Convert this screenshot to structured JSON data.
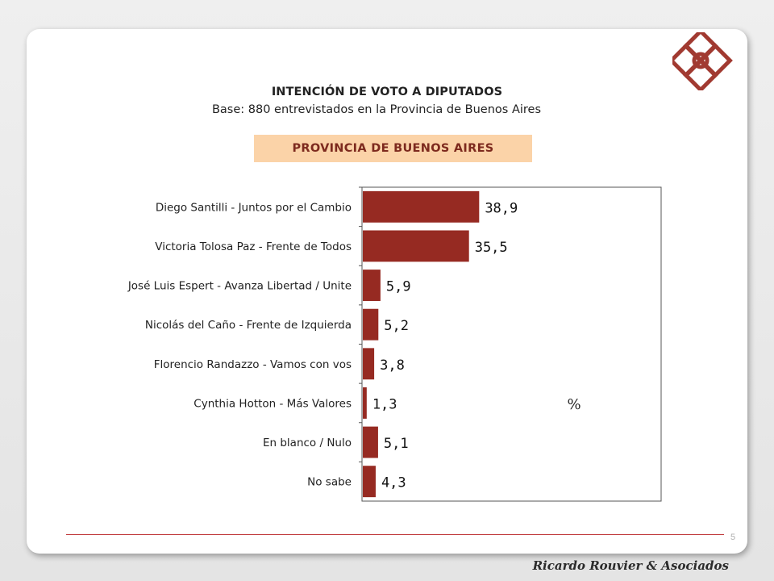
{
  "title": "INTENCIÓN DE VOTO A DIPUTADOS",
  "subtitle": "Base: 880 entrevistados en la Provincia de Buenos Aires",
  "region_label": "PROVINCIA DE BUENOS AIRES",
  "page_number": "5",
  "signature": "Ricardo Rouvier & Asociados",
  "colors": {
    "bar": "#962a22",
    "region_bg": "#fbd3a8",
    "footer_line": "#c0393b",
    "logo": "#a13a31"
  },
  "chart_data": {
    "type": "bar",
    "orientation": "horizontal",
    "categories": [
      "Diego Santilli - Juntos por el Cambio",
      "Victoria Tolosa Paz - Frente de Todos",
      "José Luis Espert - Avanza Libertad / Unite",
      "Nicolás del Caño - Frente de Izquierda",
      "Florencio Randazzo - Vamos con vos",
      "Cynthia Hotton - Más Valores",
      "En blanco / Nulo",
      "No sabe"
    ],
    "values": [
      38.9,
      35.5,
      5.9,
      5.2,
      3.8,
      1.3,
      5.1,
      4.3
    ],
    "value_labels": [
      "38,9",
      "35,5",
      "5,9",
      "5,2",
      "3,8",
      "1,3",
      "5,1",
      "4,3"
    ],
    "unit_label": "%",
    "xlim": [
      0,
      100
    ],
    "grid": false,
    "legend": false
  }
}
